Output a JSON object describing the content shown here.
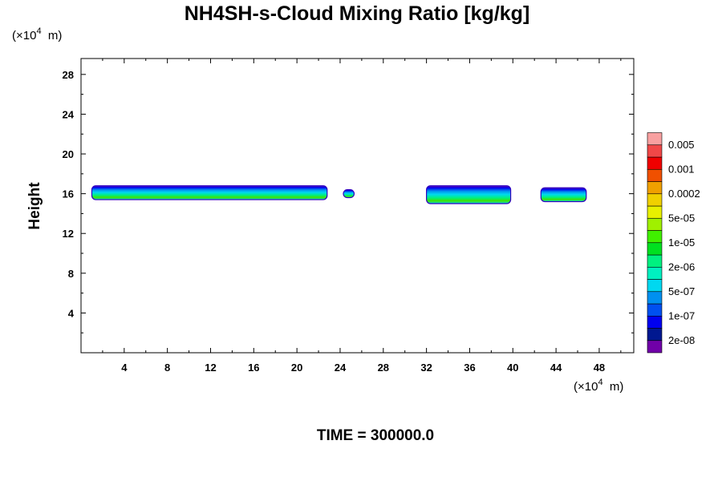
{
  "chart_data": {
    "type": "heatmap",
    "title": "NH4SH-s-Cloud Mixing Ratio [kg/kg]",
    "ylabel": "Height",
    "xlabel": "",
    "x_unit": {
      "pre": "(×10",
      "exp": "4",
      "post": "  m)"
    },
    "y_unit": {
      "pre": "(×10",
      "exp": "4",
      "post": "  m)"
    },
    "xlim": [
      0,
      51.2
    ],
    "ylim": [
      0,
      29.6
    ],
    "x_ticks": [
      4,
      8,
      12,
      16,
      20,
      24,
      28,
      32,
      36,
      40,
      44,
      48
    ],
    "y_ticks": [
      4,
      8,
      12,
      16,
      20,
      24,
      28
    ],
    "time_label": "TIME = 300000.0",
    "colorbar": {
      "colors": [
        "#7000a8",
        "#001890",
        "#0000f0",
        "#0050f0",
        "#0090f0",
        "#00d8f0",
        "#00f0c0",
        "#00f080",
        "#00e020",
        "#40f000",
        "#a0f000",
        "#e8f000",
        "#f0d000",
        "#f0a000",
        "#f05000",
        "#f00000",
        "#f04848",
        "#f8a0a0"
      ],
      "labels": [
        "2e-08",
        "1e-07",
        "5e-07",
        "2e-06",
        "1e-05",
        "5e-05",
        "0.0002",
        "0.001",
        "0.005"
      ]
    },
    "cloud_bands": [
      {
        "x_start": 1.0,
        "x_end": 22.8,
        "base": 15.4,
        "top": 16.8
      },
      {
        "x_start": 24.3,
        "x_end": 25.3,
        "base": 15.6,
        "top": 16.4
      },
      {
        "x_start": 32.0,
        "x_end": 39.8,
        "base": 15.0,
        "top": 16.8
      },
      {
        "x_start": 42.6,
        "x_end": 46.8,
        "base": 15.2,
        "top": 16.6
      }
    ]
  }
}
